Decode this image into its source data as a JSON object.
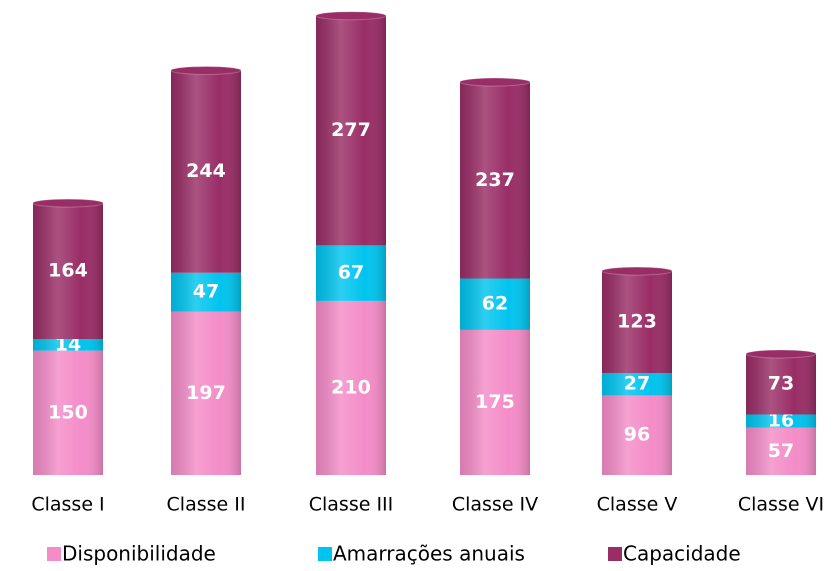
{
  "chart_data": {
    "type": "stacked-bar",
    "categories": [
      "Classe I",
      "Classe II",
      "Classe III",
      "Classe IV",
      "Classe V",
      "Classe VI"
    ],
    "series": [
      {
        "name": "Disponibilidade",
        "color": "#f48cc8",
        "values": [
          150,
          197,
          210,
          175,
          96,
          57
        ]
      },
      {
        "name": "Amarrações anuais",
        "color": "#00c4ee",
        "values": [
          14,
          47,
          67,
          62,
          27,
          16
        ]
      },
      {
        "name": "Capacidade",
        "color": "#992d66",
        "values": [
          164,
          244,
          277,
          237,
          123,
          73
        ]
      }
    ],
    "legend": "bottom"
  }
}
